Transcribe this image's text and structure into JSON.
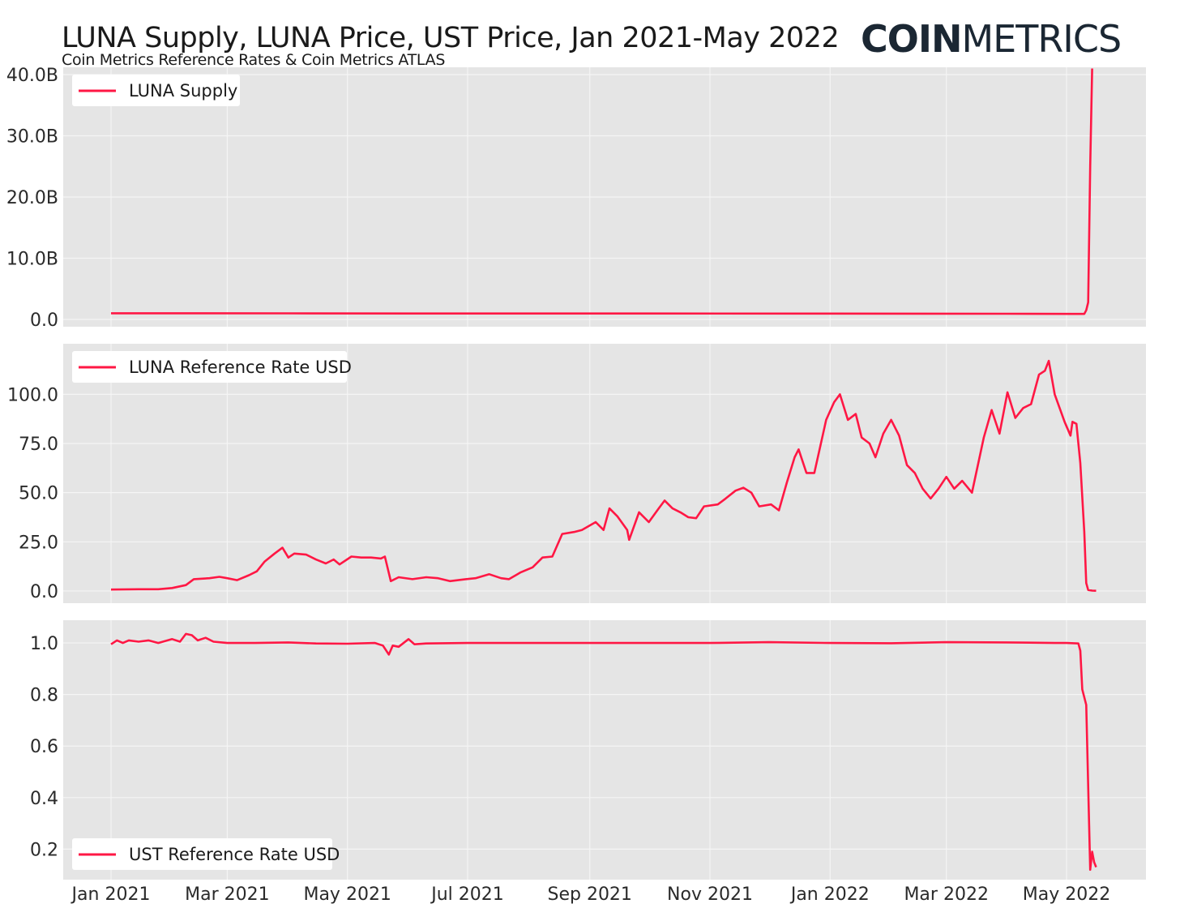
{
  "title": "LUNA Supply, LUNA Price, UST Price, Jan 2021-May 2022",
  "subtitle": "Coin Metrics Reference Rates & Coin Metrics ATLAS",
  "logo": {
    "bold": "COIN",
    "light": "METRICS"
  },
  "colors": {
    "series": "#ff1744",
    "panel_bg": "#e5e5e5",
    "grid": "#f5f5f5",
    "logo": "#1b2733"
  },
  "x_ticks": [
    {
      "label": "Jan 2021",
      "date": "2021-01-01"
    },
    {
      "label": "Mar 2021",
      "date": "2021-03-01"
    },
    {
      "label": "May 2021",
      "date": "2021-05-01"
    },
    {
      "label": "Jul 2021",
      "date": "2021-07-01"
    },
    {
      "label": "Sep 2021",
      "date": "2021-09-01"
    },
    {
      "label": "Nov 2021",
      "date": "2021-11-01"
    },
    {
      "label": "Jan 2022",
      "date": "2022-01-01"
    },
    {
      "label": "Mar 2022",
      "date": "2022-03-01"
    },
    {
      "label": "May 2022",
      "date": "2022-05-01"
    }
  ],
  "chart_data": [
    {
      "type": "line",
      "name": "LUNA Supply",
      "legend": "top-left",
      "grid": true,
      "ylim": [
        0,
        40000000000
      ],
      "y_ticks": [
        {
          "label": "0.0",
          "value": 0
        },
        {
          "label": "10.0B",
          "value": 10000000000
        },
        {
          "label": "20.0B",
          "value": 20000000000
        },
        {
          "label": "30.0B",
          "value": 30000000000
        },
        {
          "label": "40.0B",
          "value": 40000000000
        }
      ],
      "series": [
        {
          "name": "LUNA Supply",
          "points": [
            [
              "2021-01-01",
              1000000000
            ],
            [
              "2021-04-01",
              990000000
            ],
            [
              "2021-07-01",
              970000000
            ],
            [
              "2021-10-01",
              965000000
            ],
            [
              "2022-01-01",
              960000000
            ],
            [
              "2022-04-01",
              925000000
            ],
            [
              "2022-05-05",
              900000000
            ],
            [
              "2022-05-10",
              905000000
            ],
            [
              "2022-05-11",
              1500000000
            ],
            [
              "2022-05-12",
              2800000000
            ],
            [
              "2022-05-13",
              25000000000
            ],
            [
              "2022-05-14",
              41000000000
            ]
          ]
        }
      ]
    },
    {
      "type": "line",
      "name": "LUNA Reference Rate USD",
      "legend": "top-left",
      "grid": true,
      "ylim": [
        -2.5,
        122
      ],
      "y_ticks": [
        {
          "label": "0.0",
          "value": 0
        },
        {
          "label": "25.0",
          "value": 25
        },
        {
          "label": "50.0",
          "value": 50
        },
        {
          "label": "75.0",
          "value": 75
        },
        {
          "label": "100.0",
          "value": 100
        }
      ],
      "series": [
        {
          "name": "LUNA Reference Rate USD",
          "points": [
            [
              "2021-01-01",
              0.7
            ],
            [
              "2021-01-15",
              0.9
            ],
            [
              "2021-01-25",
              0.9
            ],
            [
              "2021-02-01",
              1.5
            ],
            [
              "2021-02-08",
              3.0
            ],
            [
              "2021-02-12",
              6.0
            ],
            [
              "2021-02-20",
              6.5
            ],
            [
              "2021-02-25",
              7.2
            ],
            [
              "2021-03-01",
              6.5
            ],
            [
              "2021-03-06",
              5.5
            ],
            [
              "2021-03-12",
              8.0
            ],
            [
              "2021-03-16",
              10.0
            ],
            [
              "2021-03-20",
              15.0
            ],
            [
              "2021-03-25",
              19.0
            ],
            [
              "2021-03-29",
              22.0
            ],
            [
              "2021-04-01",
              17.0
            ],
            [
              "2021-04-04",
              19.0
            ],
            [
              "2021-04-10",
              18.5
            ],
            [
              "2021-04-15",
              16.0
            ],
            [
              "2021-04-20",
              14.0
            ],
            [
              "2021-04-24",
              16.0
            ],
            [
              "2021-04-27",
              13.5
            ],
            [
              "2021-05-03",
              17.5
            ],
            [
              "2021-05-08",
              17.0
            ],
            [
              "2021-05-13",
              17.0
            ],
            [
              "2021-05-18",
              16.5
            ],
            [
              "2021-05-20",
              17.5
            ],
            [
              "2021-05-23",
              5.0
            ],
            [
              "2021-05-27",
              7.0
            ],
            [
              "2021-06-03",
              6.0
            ],
            [
              "2021-06-10",
              7.0
            ],
            [
              "2021-06-16",
              6.5
            ],
            [
              "2021-06-22",
              5.0
            ],
            [
              "2021-06-30",
              6.0
            ],
            [
              "2021-07-05",
              6.5
            ],
            [
              "2021-07-12",
              8.5
            ],
            [
              "2021-07-18",
              6.5
            ],
            [
              "2021-07-22",
              6.0
            ],
            [
              "2021-07-28",
              9.5
            ],
            [
              "2021-08-03",
              12.0
            ],
            [
              "2021-08-08",
              17.0
            ],
            [
              "2021-08-13",
              17.5
            ],
            [
              "2021-08-18",
              29.0
            ],
            [
              "2021-08-24",
              30.0
            ],
            [
              "2021-08-28",
              31.0
            ],
            [
              "2021-09-04",
              35.0
            ],
            [
              "2021-09-08",
              31.0
            ],
            [
              "2021-09-11",
              42.0
            ],
            [
              "2021-09-15",
              38.0
            ],
            [
              "2021-09-20",
              31.0
            ],
            [
              "2021-09-21",
              26.0
            ],
            [
              "2021-09-26",
              40.0
            ],
            [
              "2021-10-01",
              35.0
            ],
            [
              "2021-10-06",
              42.0
            ],
            [
              "2021-10-09",
              46.0
            ],
            [
              "2021-10-13",
              42.0
            ],
            [
              "2021-10-17",
              40.0
            ],
            [
              "2021-10-21",
              37.5
            ],
            [
              "2021-10-25",
              37.0
            ],
            [
              "2021-10-29",
              43.0
            ],
            [
              "2021-11-05",
              44.0
            ],
            [
              "2021-11-09",
              47.0
            ],
            [
              "2021-11-14",
              51.0
            ],
            [
              "2021-11-18",
              52.5
            ],
            [
              "2021-11-22",
              50.0
            ],
            [
              "2021-11-26",
              43.0
            ],
            [
              "2021-12-02",
              44.0
            ],
            [
              "2021-12-06",
              41.0
            ],
            [
              "2021-12-10",
              55.0
            ],
            [
              "2021-12-14",
              68.0
            ],
            [
              "2021-12-16",
              72.0
            ],
            [
              "2021-12-20",
              60.0
            ],
            [
              "2021-12-24",
              60.0
            ],
            [
              "2021-12-30",
              87.0
            ],
            [
              "2022-01-03",
              96.0
            ],
            [
              "2022-01-06",
              100.0
            ],
            [
              "2022-01-10",
              87.0
            ],
            [
              "2022-01-14",
              90.0
            ],
            [
              "2022-01-17",
              78.0
            ],
            [
              "2022-01-21",
              75.0
            ],
            [
              "2022-01-24",
              68.0
            ],
            [
              "2022-01-28",
              80.0
            ],
            [
              "2022-02-01",
              87.0
            ],
            [
              "2022-02-05",
              79.0
            ],
            [
              "2022-02-09",
              64.0
            ],
            [
              "2022-02-13",
              60.0
            ],
            [
              "2022-02-17",
              52.0
            ],
            [
              "2022-02-21",
              47.0
            ],
            [
              "2022-02-25",
              52.0
            ],
            [
              "2022-03-01",
              58.0
            ],
            [
              "2022-03-05",
              52.0
            ],
            [
              "2022-03-09",
              56.0
            ],
            [
              "2022-03-14",
              50.0
            ],
            [
              "2022-03-20",
              78.0
            ],
            [
              "2022-03-24",
              92.0
            ],
            [
              "2022-03-28",
              80.0
            ],
            [
              "2022-04-01",
              101.0
            ],
            [
              "2022-04-05",
              88.0
            ],
            [
              "2022-04-09",
              93.0
            ],
            [
              "2022-04-13",
              95.0
            ],
            [
              "2022-04-17",
              110.0
            ],
            [
              "2022-04-20",
              112.0
            ],
            [
              "2022-04-22",
              117.0
            ],
            [
              "2022-04-25",
              100.0
            ],
            [
              "2022-04-30",
              86.0
            ],
            [
              "2022-05-03",
              79.0
            ],
            [
              "2022-05-04",
              86.0
            ],
            [
              "2022-05-06",
              85.0
            ],
            [
              "2022-05-08",
              65.0
            ],
            [
              "2022-05-10",
              30.0
            ],
            [
              "2022-05-11",
              4.0
            ],
            [
              "2022-05-12",
              0.5
            ],
            [
              "2022-05-14",
              0.2
            ],
            [
              "2022-05-16",
              0.1
            ]
          ]
        }
      ]
    },
    {
      "type": "line",
      "name": "UST Reference Rate USD",
      "legend": "bottom-left",
      "grid": true,
      "ylim": [
        0.11,
        1.06
      ],
      "y_ticks": [
        {
          "label": "0.2",
          "value": 0.2
        },
        {
          "label": "0.4",
          "value": 0.4
        },
        {
          "label": "0.6",
          "value": 0.6
        },
        {
          "label": "0.8",
          "value": 0.8
        },
        {
          "label": "1.0",
          "value": 1.0
        }
      ],
      "series": [
        {
          "name": "UST Reference Rate USD",
          "points": [
            [
              "2021-01-01",
              0.995
            ],
            [
              "2021-01-04",
              1.01
            ],
            [
              "2021-01-07",
              1.0
            ],
            [
              "2021-01-10",
              1.01
            ],
            [
              "2021-01-15",
              1.005
            ],
            [
              "2021-01-20",
              1.01
            ],
            [
              "2021-01-25",
              1.0
            ],
            [
              "2021-02-01",
              1.015
            ],
            [
              "2021-02-05",
              1.005
            ],
            [
              "2021-02-08",
              1.035
            ],
            [
              "2021-02-11",
              1.03
            ],
            [
              "2021-02-14",
              1.01
            ],
            [
              "2021-02-18",
              1.02
            ],
            [
              "2021-02-22",
              1.005
            ],
            [
              "2021-03-01",
              1.0
            ],
            [
              "2021-03-15",
              1.0
            ],
            [
              "2021-04-01",
              1.002
            ],
            [
              "2021-04-15",
              0.998
            ],
            [
              "2021-05-01",
              0.997
            ],
            [
              "2021-05-15",
              1.0
            ],
            [
              "2021-05-19",
              0.99
            ],
            [
              "2021-05-22",
              0.955
            ],
            [
              "2021-05-24",
              0.99
            ],
            [
              "2021-05-27",
              0.985
            ],
            [
              "2021-06-01",
              1.015
            ],
            [
              "2021-06-04",
              0.995
            ],
            [
              "2021-06-10",
              0.998
            ],
            [
              "2021-07-01",
              1.0
            ],
            [
              "2021-08-01",
              1.0
            ],
            [
              "2021-09-01",
              1.0
            ],
            [
              "2021-10-01",
              1.0
            ],
            [
              "2021-11-01",
              1.0
            ],
            [
              "2021-12-01",
              1.003
            ],
            [
              "2022-01-01",
              1.0
            ],
            [
              "2022-02-01",
              0.999
            ],
            [
              "2022-03-01",
              1.003
            ],
            [
              "2022-04-01",
              1.002
            ],
            [
              "2022-04-25",
              1.0
            ],
            [
              "2022-05-01",
              1.0
            ],
            [
              "2022-05-07",
              0.998
            ],
            [
              "2022-05-08",
              0.97
            ],
            [
              "2022-05-09",
              0.82
            ],
            [
              "2022-05-11",
              0.76
            ],
            [
              "2022-05-13",
              0.12
            ],
            [
              "2022-05-14",
              0.19
            ],
            [
              "2022-05-15",
              0.15
            ],
            [
              "2022-05-16",
              0.13
            ]
          ]
        }
      ]
    }
  ]
}
